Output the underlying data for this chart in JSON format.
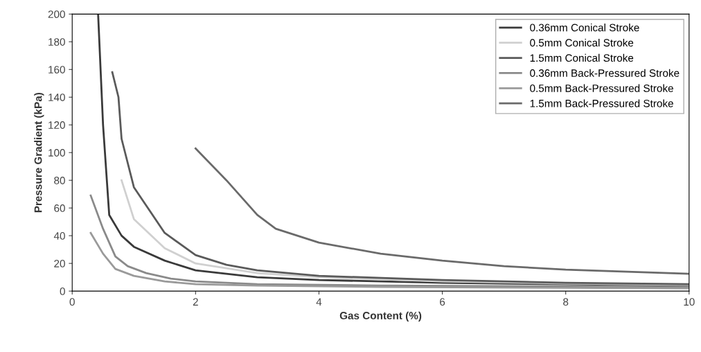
{
  "chart_data": {
    "type": "line",
    "xlabel": "Gas Content (%)",
    "ylabel": "Pressure Gradient (kPa)",
    "xlim": [
      0,
      10
    ],
    "xticks": [
      0,
      2,
      4,
      6,
      8,
      10
    ],
    "ylim": [
      0,
      200
    ],
    "yticks": [
      0,
      20,
      40,
      60,
      80,
      100,
      120,
      140,
      160,
      180,
      200
    ],
    "grid": false,
    "legend": "top right",
    "marker": "none",
    "line_style": "solid",
    "series": [
      {
        "name": "0.36mm Conical Stroke",
        "color": "#3a3a3a",
        "x": [
          0.42,
          0.5,
          0.6,
          0.8,
          1,
          1.5,
          2,
          3,
          4,
          6,
          8,
          10
        ],
        "values": [
          200,
          120,
          55,
          40,
          32,
          22,
          15,
          10,
          8,
          6,
          5,
          4
        ]
      },
      {
        "name": "0.5mm Conical Stroke",
        "color": "#d0d0d0",
        "x": [
          0.8,
          1,
          1.5,
          2,
          3,
          4,
          6,
          8,
          10
        ],
        "values": [
          80,
          52,
          31,
          20,
          13,
          10,
          7,
          5.5,
          4.5
        ]
      },
      {
        "name": "1.5mm Conical Stroke",
        "color": "#5a5a5a",
        "x": [
          0.65,
          0.75,
          0.8,
          1,
          1.5,
          2,
          2.5,
          3,
          4,
          6,
          8,
          10
        ],
        "values": [
          158,
          140,
          110,
          75,
          42,
          26,
          19,
          15,
          11,
          8,
          6,
          5
        ]
      },
      {
        "name": "0.36mm Back-Pressured Stroke",
        "color": "#8a8a8a",
        "x": [
          0.3,
          0.5,
          0.7,
          0.9,
          1.2,
          1.6,
          2,
          3,
          5,
          10
        ],
        "values": [
          69,
          45,
          25,
          18,
          13,
          9,
          7,
          5,
          4,
          3
        ]
      },
      {
        "name": "0.5mm Back-Pressured Stroke",
        "color": "#9a9a9a",
        "x": [
          0.3,
          0.5,
          0.7,
          1,
          1.5,
          2,
          3,
          5,
          10
        ],
        "values": [
          42,
          27,
          16,
          11,
          7,
          5,
          4,
          3,
          2
        ]
      },
      {
        "name": "1.5mm Back-Pressured Stroke",
        "color": "#6a6a6a",
        "x": [
          2,
          2.5,
          3,
          3.3,
          4,
          5,
          6,
          7,
          8,
          9,
          10
        ],
        "values": [
          103,
          80,
          55,
          45,
          35,
          27,
          22,
          18,
          15.5,
          14,
          12.5
        ]
      }
    ]
  }
}
